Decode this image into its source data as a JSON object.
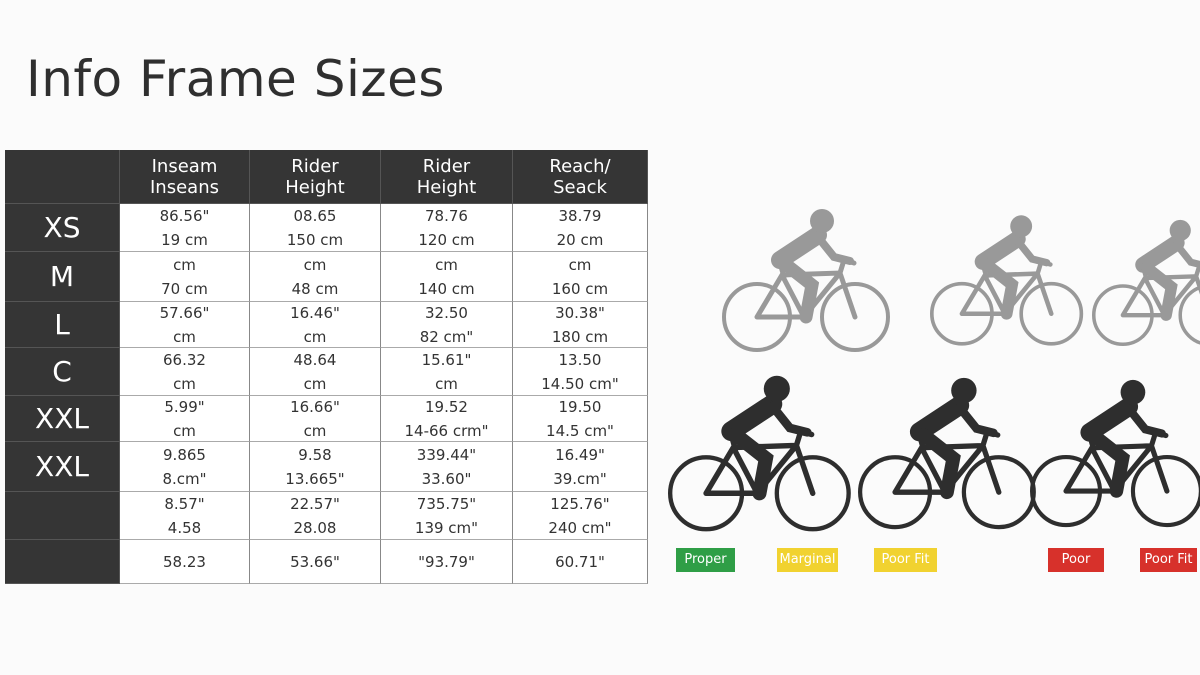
{
  "title": "Info Frame Sizes",
  "table": {
    "headers": [
      [
        "Inseam",
        "Inseans"
      ],
      [
        "Rider",
        "Height"
      ],
      [
        "Rider",
        "Height"
      ],
      [
        "Reach/",
        "Seack"
      ]
    ],
    "rows": [
      {
        "label": "XS",
        "cells": [
          [
            "86.56\"",
            "19 cm"
          ],
          [
            "08.65",
            "150 cm"
          ],
          [
            "78.76",
            "120 cm"
          ],
          [
            "38.79",
            "20 cm"
          ]
        ]
      },
      {
        "label": "M",
        "cells": [
          [
            "cm",
            "70 cm"
          ],
          [
            "cm",
            "48 cm"
          ],
          [
            "cm",
            "140 cm"
          ],
          [
            "cm",
            "160 cm"
          ]
        ]
      },
      {
        "label": "L",
        "cells": [
          [
            "57.66\"",
            "cm"
          ],
          [
            "16.46\"",
            "cm"
          ],
          [
            "32.50",
            "82 cm\""
          ],
          [
            "30.38\"",
            "180 cm"
          ]
        ]
      },
      {
        "label": "C",
        "cells": [
          [
            "66.32",
            "cm"
          ],
          [
            "48.64",
            "cm"
          ],
          [
            "15.61\"",
            "cm"
          ],
          [
            "13.50",
            "14.50 cm\""
          ]
        ]
      },
      {
        "label": "XXL",
        "cells": [
          [
            "5.99\"",
            "cm"
          ],
          [
            "16.66\"",
            "cm"
          ],
          [
            "19.52",
            "14-66 crm\""
          ],
          [
            "19.50",
            "14.5 cm\""
          ]
        ]
      },
      {
        "label": "XXL",
        "cells": [
          [
            "9.865",
            "8.cm\""
          ],
          [
            "9.58",
            "13.665\""
          ],
          [
            "339.44\"",
            "33.60\""
          ],
          [
            "16.49\"",
            "39.cm\""
          ]
        ]
      },
      {
        "cells": [
          [
            "8.57\"",
            "4.58"
          ],
          [
            "22.57\"",
            "28.08"
          ],
          [
            "735.75\"",
            "139 cm\""
          ],
          [
            "125.76\"",
            "240 cm\""
          ]
        ]
      },
      {
        "cells": [
          [
            "58.23"
          ],
          [
            "53.66\""
          ],
          [
            "\"93.79\""
          ],
          [
            "60.71\""
          ]
        ]
      }
    ]
  },
  "badges": [
    {
      "text": "Proper",
      "color": "#2f9e46"
    },
    {
      "text": "Marginal",
      "color": "#f1d230"
    },
    {
      "text": "Poor Fit",
      "color": "#f1d230"
    },
    {
      "text": "Poor",
      "color": "#d7312b"
    },
    {
      "text": "Poor Fit",
      "color": "#d7312b"
    }
  ]
}
